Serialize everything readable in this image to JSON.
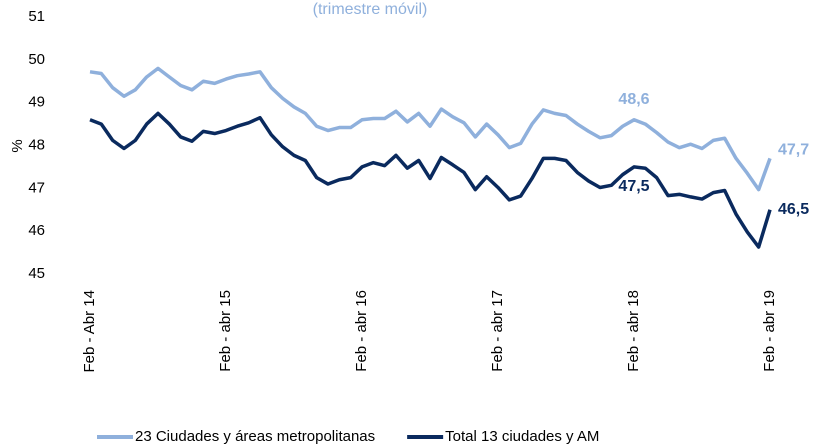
{
  "chart_data": {
    "type": "line",
    "subtitle": "(trimestre móvil)",
    "y_label": "%",
    "categories": [
      "Feb - Abr 14",
      null,
      null,
      null,
      null,
      null,
      null,
      null,
      null,
      null,
      null,
      null,
      "Feb - abr 15",
      null,
      null,
      null,
      null,
      null,
      null,
      null,
      null,
      null,
      null,
      null,
      "Feb - abr 16",
      null,
      null,
      null,
      null,
      null,
      null,
      null,
      null,
      null,
      null,
      null,
      "Feb - abr 17",
      null,
      null,
      null,
      null,
      null,
      null,
      null,
      null,
      null,
      null,
      null,
      "Feb - abr 18",
      null,
      null,
      null,
      null,
      null,
      null,
      null,
      null,
      null,
      null,
      null,
      "Feb - abr 19"
    ],
    "ylim": [
      45,
      51
    ],
    "yticks": [
      45,
      46,
      47,
      48,
      49,
      50,
      51
    ],
    "grid": false,
    "series": [
      {
        "name": "23 Ciudades y áreas metropolitanas",
        "color": "#8fb0dc",
        "values": [
          49.72,
          49.68,
          49.35,
          49.15,
          49.3,
          49.6,
          49.8,
          49.6,
          49.4,
          49.3,
          49.5,
          49.45,
          49.55,
          49.63,
          49.67,
          49.72,
          49.35,
          49.1,
          48.9,
          48.75,
          48.45,
          48.35,
          48.42,
          48.42,
          48.6,
          48.63,
          48.63,
          48.8,
          48.55,
          48.75,
          48.45,
          48.85,
          48.67,
          48.53,
          48.2,
          48.5,
          48.25,
          47.95,
          48.05,
          48.5,
          48.83,
          48.75,
          48.7,
          48.5,
          48.33,
          48.18,
          48.23,
          48.45,
          48.6,
          48.5,
          48.3,
          48.08,
          47.95,
          48.03,
          47.93,
          48.12,
          48.17,
          47.7,
          47.35,
          46.97,
          47.7
        ],
        "value_labels": [
          null,
          null,
          null,
          null,
          null,
          null,
          null,
          null,
          null,
          null,
          null,
          null,
          null,
          null,
          null,
          null,
          null,
          null,
          null,
          null,
          null,
          null,
          null,
          null,
          null,
          null,
          null,
          null,
          null,
          null,
          null,
          null,
          null,
          null,
          null,
          null,
          null,
          null,
          null,
          null,
          null,
          null,
          null,
          null,
          null,
          null,
          null,
          null,
          "48,6",
          null,
          null,
          null,
          null,
          null,
          null,
          null,
          null,
          null,
          null,
          null,
          "47,7"
        ]
      },
      {
        "name": "Total 13 ciudades y AM",
        "color": "#0a2a5e",
        "values": [
          48.6,
          48.5,
          48.12,
          47.93,
          48.12,
          48.5,
          48.75,
          48.5,
          48.2,
          48.1,
          48.33,
          48.28,
          48.35,
          48.45,
          48.53,
          48.65,
          48.25,
          47.97,
          47.77,
          47.65,
          47.25,
          47.1,
          47.2,
          47.25,
          47.5,
          47.6,
          47.53,
          47.77,
          47.47,
          47.65,
          47.23,
          47.72,
          47.55,
          47.37,
          46.97,
          47.27,
          47.02,
          46.73,
          46.82,
          47.23,
          47.7,
          47.7,
          47.65,
          47.37,
          47.17,
          47.02,
          47.07,
          47.32,
          47.5,
          47.47,
          47.25,
          46.83,
          46.86,
          46.8,
          46.75,
          46.9,
          46.95,
          46.4,
          45.98,
          45.63,
          46.5
        ],
        "value_labels": [
          null,
          null,
          null,
          null,
          null,
          null,
          null,
          null,
          null,
          null,
          null,
          null,
          null,
          null,
          null,
          null,
          null,
          null,
          null,
          null,
          null,
          null,
          null,
          null,
          null,
          null,
          null,
          null,
          null,
          null,
          null,
          null,
          null,
          null,
          null,
          null,
          null,
          null,
          null,
          null,
          null,
          null,
          null,
          null,
          null,
          null,
          null,
          null,
          "47,5",
          null,
          null,
          null,
          null,
          null,
          null,
          null,
          null,
          null,
          null,
          null,
          "46,5"
        ]
      }
    ]
  }
}
